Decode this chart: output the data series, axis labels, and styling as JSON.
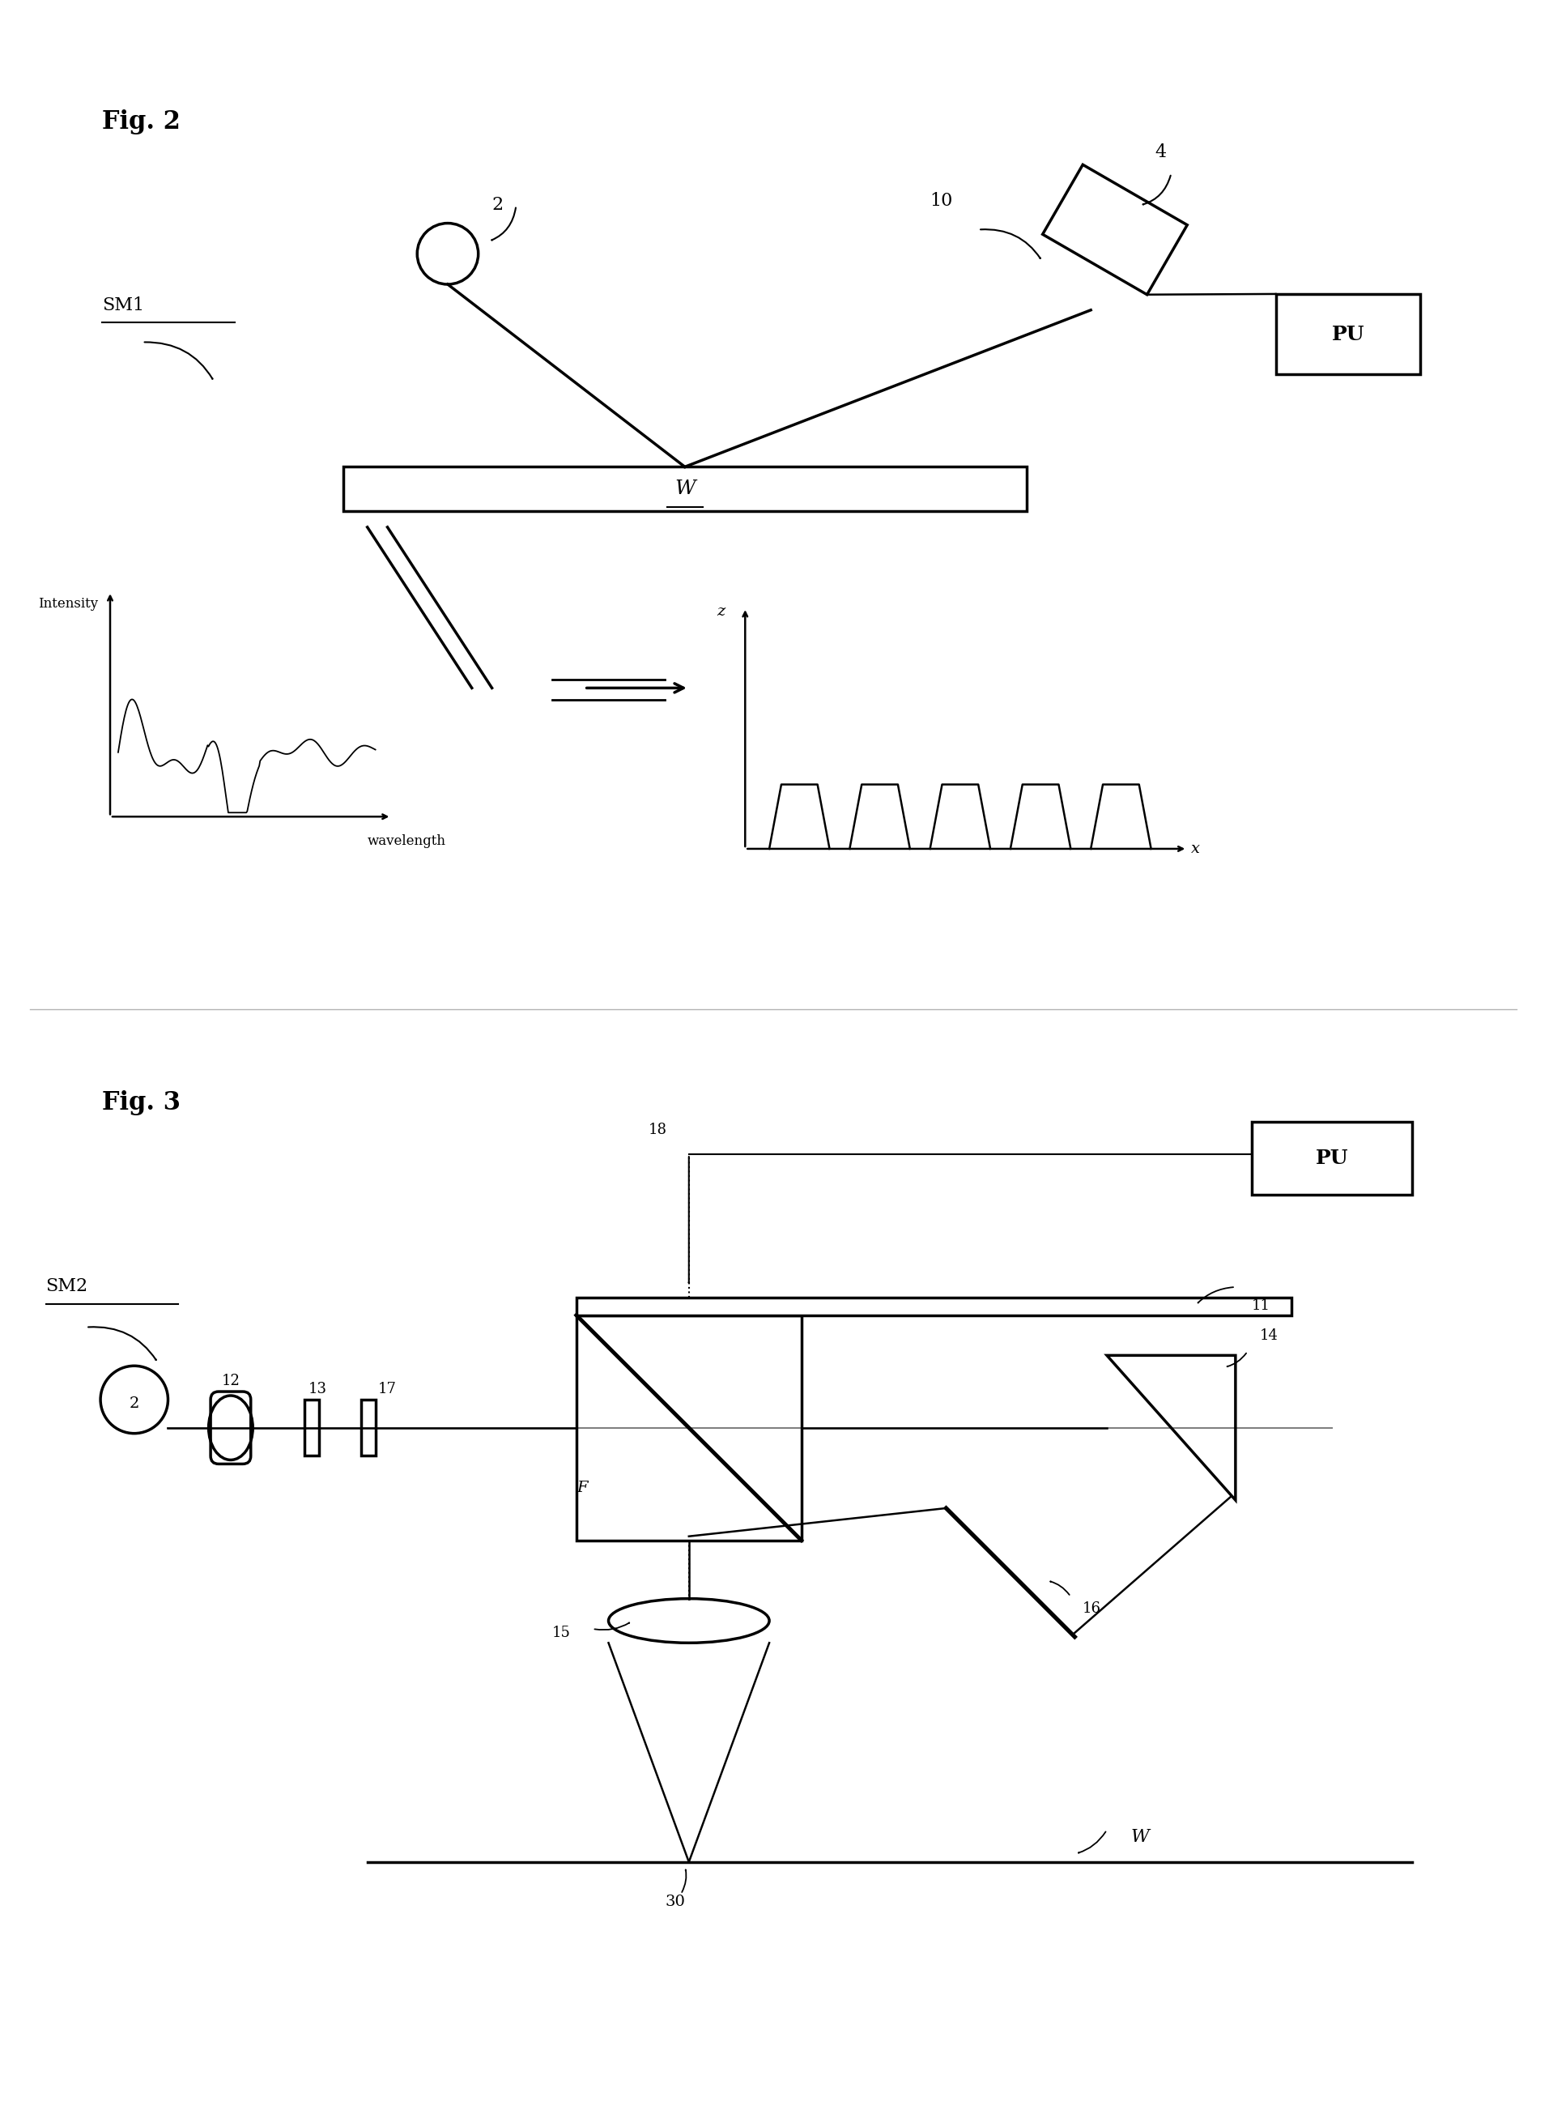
{
  "bg_color": "#ffffff",
  "fig2_label": "Fig. 2",
  "fig3_label": "Fig. 3",
  "label_2_fig2": "2",
  "label_4": "4",
  "label_10": "10",
  "label_W_fig2": "W",
  "label_PU_fig2": "PU",
  "label_SM1": "SM1",
  "label_intensity": "Intensity",
  "label_wavelength": "wavelength",
  "label_z": "z",
  "label_x": "x",
  "label_SM2": "SM2",
  "label_2_fig3": "2",
  "label_12": "12",
  "label_13": "13",
  "label_17": "17",
  "label_18": "18",
  "label_11": "11",
  "label_14": "14",
  "label_15": "15",
  "label_16": "16",
  "label_F": "F",
  "label_PU_fig3": "PU",
  "label_W_fig3": "W",
  "label_30": "30"
}
